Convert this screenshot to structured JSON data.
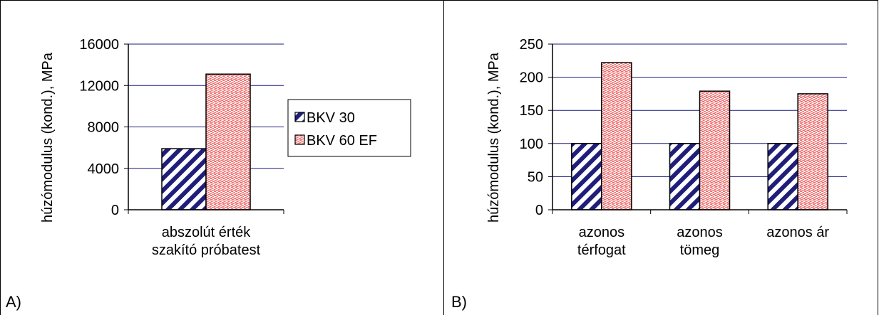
{
  "chart_data": [
    {
      "type": "bar",
      "panel_label": "A)",
      "ylabel": "húzómodulus (kond.), MPa",
      "categories": [
        [
          "abszolút érték",
          "szakító próbatest"
        ]
      ],
      "ylim": [
        0,
        16000
      ],
      "yticks": [
        "0",
        "4000",
        "8000",
        "12000",
        "16000"
      ],
      "series": [
        {
          "name": "BKV 30",
          "values": [
            5900
          ]
        },
        {
          "name": "BKV 60 EF",
          "values": [
            13100
          ]
        }
      ],
      "grid": true,
      "legend": "right"
    },
    {
      "type": "bar",
      "panel_label": "B)",
      "ylabel": "húzómodulus (kond.), MPa",
      "categories": [
        [
          "azonos",
          "térfogat"
        ],
        [
          "azonos",
          "tömeg"
        ],
        [
          "azonos ár"
        ]
      ],
      "ylim": [
        0,
        250
      ],
      "yticks": [
        "0",
        "50",
        "100",
        "150",
        "200",
        "250"
      ],
      "series": [
        {
          "name": "BKV 30",
          "values": [
            100,
            100,
            100
          ]
        },
        {
          "name": "BKV 60 EF",
          "values": [
            222,
            179,
            175
          ]
        }
      ],
      "grid": true,
      "legend": "none"
    }
  ]
}
